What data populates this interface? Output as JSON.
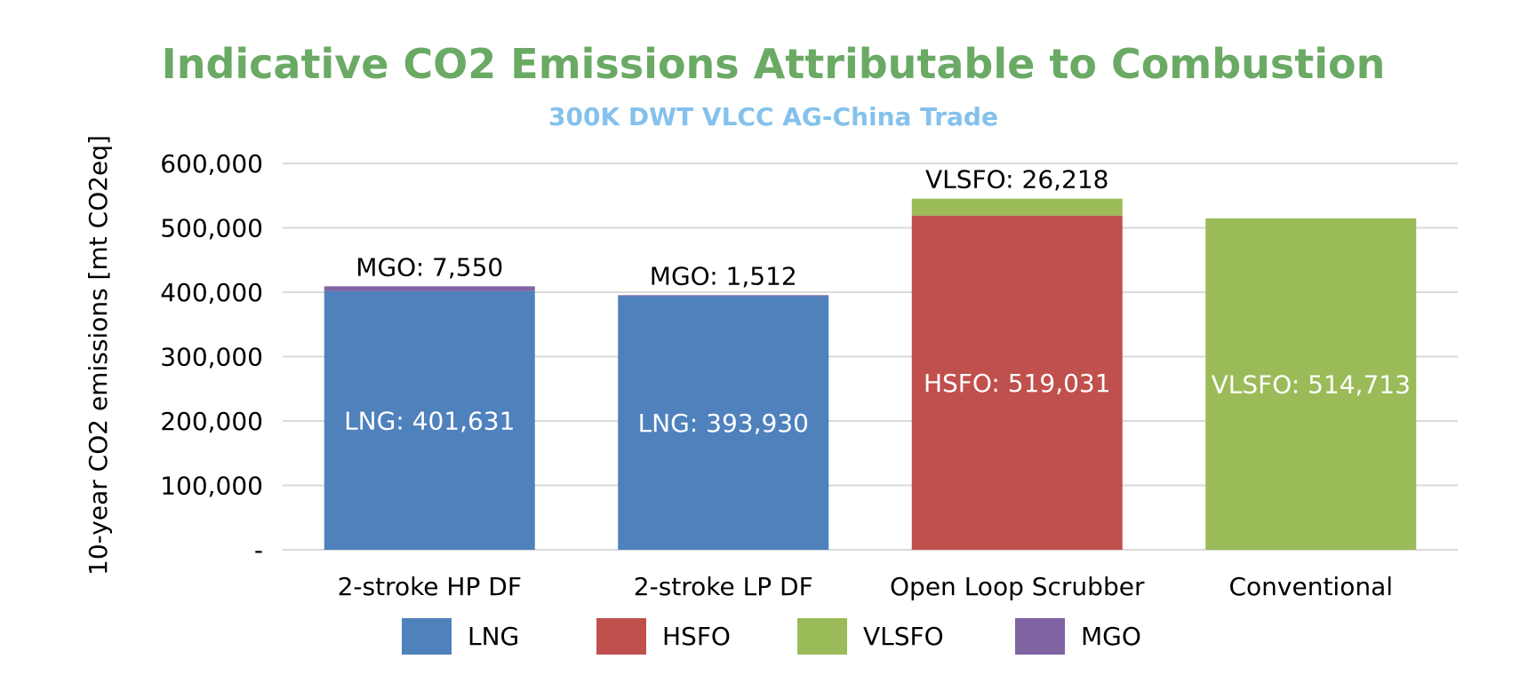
{
  "chart_data": {
    "type": "bar",
    "stacked": true,
    "title": "Indicative CO2 Emissions Attributable to Combustion",
    "subtitle": "300K DWT VLCC AG-China Trade",
    "title_color": "#6aaa64",
    "subtitle_color": "#85c1ec",
    "xlabel": "",
    "ylabel": "10-year CO2 emissions [mt CO2eq]",
    "ylim": [
      0,
      600000
    ],
    "yticks": [
      0,
      100000,
      200000,
      300000,
      400000,
      500000,
      600000
    ],
    "ytick_labels": [
      "-",
      "100,000",
      "200,000",
      "300,000",
      "400,000",
      "500,000",
      "600,000"
    ],
    "grid": true,
    "legend_position": "bottom",
    "categories": [
      "2-stroke HP DF",
      "2-stroke LP DF",
      "Open Loop Scrubber",
      "Conventional"
    ],
    "series": [
      {
        "name": "LNG",
        "color": "#4f81bd",
        "values": [
          401631,
          393930,
          0,
          0
        ]
      },
      {
        "name": "HSFO",
        "color": "#c0504d",
        "values": [
          0,
          0,
          519031,
          0
        ]
      },
      {
        "name": "VLSFO",
        "color": "#9bbb59",
        "values": [
          0,
          0,
          26218,
          514713
        ]
      },
      {
        "name": "MGO",
        "color": "#8064a2",
        "values": [
          7550,
          1512,
          0,
          0
        ]
      }
    ],
    "data_labels": [
      {
        "category": 0,
        "text": "LNG: 401,631",
        "position": "inside"
      },
      {
        "category": 0,
        "text": "MGO: 7,550",
        "position": "above"
      },
      {
        "category": 1,
        "text": "LNG: 393,930",
        "position": "inside"
      },
      {
        "category": 1,
        "text": "MGO: 1,512",
        "position": "above"
      },
      {
        "category": 2,
        "text": "HSFO: 519,031",
        "position": "inside"
      },
      {
        "category": 2,
        "text": "VLSFO: 26,218",
        "position": "above"
      },
      {
        "category": 3,
        "text": "VLSFO: 514,713",
        "position": "inside"
      }
    ]
  }
}
